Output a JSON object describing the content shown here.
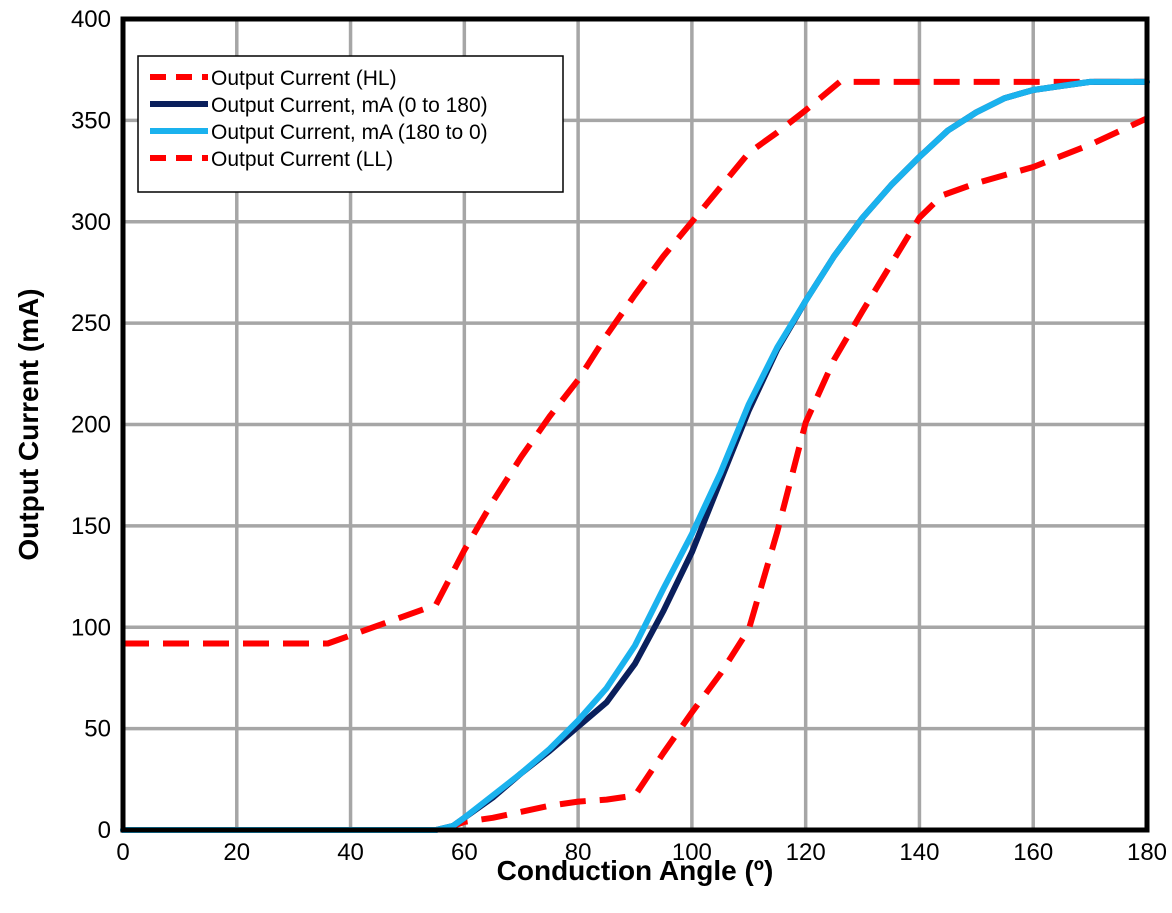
{
  "chart_data": {
    "type": "line",
    "title": "",
    "xlabel": "Conduction Angle (º)",
    "ylabel": "Output Current (mA)",
    "xlim": [
      0,
      180
    ],
    "ylim": [
      0,
      400
    ],
    "xticks": [
      0,
      20,
      40,
      60,
      80,
      100,
      120,
      140,
      160,
      180
    ],
    "yticks": [
      0,
      50,
      100,
      150,
      200,
      250,
      300,
      350,
      400
    ],
    "xtick_labels": [
      "0",
      "20",
      "40",
      "60",
      "80",
      "100",
      "120",
      "140",
      "160",
      "180"
    ],
    "ytick_labels": [
      "0",
      "50",
      "100",
      "150",
      "200",
      "250",
      "300",
      "350",
      "400"
    ],
    "grid": true,
    "legend_position": "top-left",
    "series": [
      {
        "name": "Output Current (HL)",
        "color": "#ff0000",
        "style": "dashed",
        "x": [
          0,
          10,
          20,
          30,
          36,
          40,
          45,
          50,
          55,
          60,
          65,
          70,
          75,
          80,
          85,
          90,
          95,
          100,
          105,
          110,
          115,
          120,
          126,
          140,
          160,
          180
        ],
        "y": [
          92,
          92,
          92,
          92,
          92,
          96,
          101,
          106,
          111,
          138,
          162,
          184,
          204,
          222,
          244,
          264,
          283,
          300,
          317,
          334,
          344,
          355,
          369,
          369,
          369,
          369
        ]
      },
      {
        "name": "Output Current, mA (0 to 180)",
        "color": "#0a1f5c",
        "style": "solid",
        "x": [
          0,
          10,
          20,
          30,
          40,
          50,
          55,
          58,
          60,
          65,
          70,
          75,
          80,
          85,
          90,
          95,
          100,
          105,
          110,
          115,
          120,
          125,
          130,
          135,
          140,
          145,
          150,
          155,
          160,
          165,
          170,
          175,
          180
        ],
        "y": [
          0,
          0,
          0,
          0,
          0,
          0,
          0,
          2,
          6,
          16,
          28,
          39,
          51,
          63,
          82,
          108,
          137,
          172,
          207,
          237,
          261,
          283,
          302,
          318,
          332,
          345,
          354,
          361,
          365,
          367,
          369,
          369,
          369
        ]
      },
      {
        "name": "Output Current, mA (180 to 0)",
        "color": "#1ab2ee",
        "style": "solid",
        "x": [
          0,
          10,
          20,
          30,
          40,
          50,
          55,
          58,
          60,
          65,
          70,
          75,
          80,
          85,
          90,
          95,
          100,
          105,
          110,
          115,
          120,
          125,
          130,
          135,
          140,
          145,
          150,
          155,
          160,
          165,
          170,
          175,
          180
        ],
        "y": [
          0,
          0,
          0,
          0,
          0,
          0,
          0,
          2,
          6,
          17,
          28,
          40,
          54,
          70,
          91,
          119,
          146,
          176,
          210,
          238,
          261,
          283,
          302,
          318,
          332,
          345,
          354,
          361,
          365,
          367,
          369,
          369,
          369
        ]
      },
      {
        "name": "Output Current (LL)",
        "color": "#ff0000",
        "style": "dashed",
        "x": [
          0,
          10,
          20,
          30,
          40,
          50,
          56,
          60,
          65,
          70,
          75,
          80,
          85,
          90,
          95,
          100,
          105,
          110,
          115,
          120,
          125,
          130,
          135,
          140,
          144,
          150,
          160,
          170,
          180
        ],
        "y": [
          0,
          0,
          0,
          0,
          0,
          0,
          0,
          4,
          6,
          9,
          12,
          14,
          15,
          17,
          38,
          58,
          77,
          99,
          147,
          201,
          232,
          256,
          279,
          302,
          313,
          319,
          327,
          338,
          351
        ]
      }
    ]
  }
}
